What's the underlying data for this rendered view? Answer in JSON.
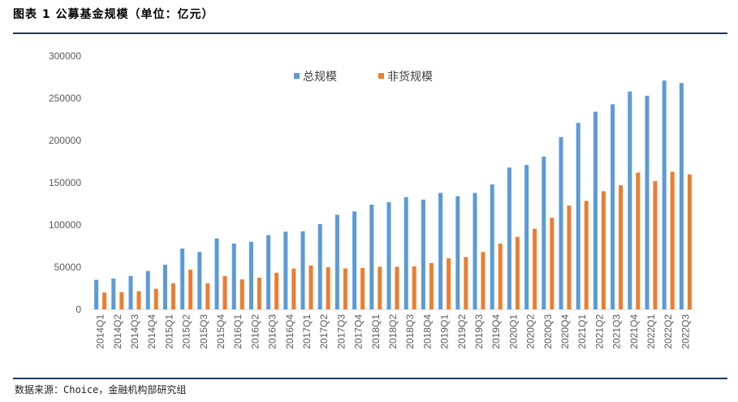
{
  "header": {
    "title": "图表 1 公募基金规模（单位：亿元）"
  },
  "footer": {
    "source": "数据来源：Choice，金融机构部研究组"
  },
  "colors": {
    "series_total": "#5B9BD5",
    "series_non_monetary": "#ED7D31",
    "rule": "#1f3a5a"
  },
  "chart_data": {
    "type": "bar",
    "title": "公募基金规模（单位：亿元）",
    "xlabel": "",
    "ylabel": "",
    "ylim": [
      0,
      300000
    ],
    "yticks": [
      0,
      50000,
      100000,
      150000,
      200000,
      250000,
      300000
    ],
    "ytick_labels": [
      "0",
      "50000",
      "100000",
      "150000",
      "200000",
      "250000",
      "300000"
    ],
    "grid": false,
    "legend_position": "top-center",
    "categories": [
      "2014Q1",
      "2014Q2",
      "2014Q3",
      "2014Q4",
      "2015Q1",
      "2015Q2",
      "2015Q3",
      "2015Q4",
      "2016Q1",
      "2016Q2",
      "2016Q3",
      "2016Q4",
      "2017Q1",
      "2017Q2",
      "2017Q3",
      "2017Q4",
      "2018Q1",
      "2018Q2",
      "2018Q3",
      "2018Q4",
      "2019Q1",
      "2019Q2",
      "2019Q3",
      "2019Q4",
      "2020Q1",
      "2020Q2",
      "2020Q3",
      "2020Q4",
      "2021Q1",
      "2021Q2",
      "2021Q3",
      "2021Q4",
      "2022Q1",
      "2022Q2",
      "2022Q3"
    ],
    "series": [
      {
        "name": "总规模",
        "values": [
          35000,
          36500,
          39500,
          45500,
          53000,
          72000,
          68000,
          84000,
          78000,
          80000,
          88000,
          92000,
          92500,
          101000,
          112000,
          116000,
          124000,
          127000,
          133000,
          130000,
          138000,
          134000,
          138000,
          148000,
          168000,
          171000,
          181000,
          204000,
          221000,
          234000,
          243000,
          258000,
          253000,
          271000,
          268000
        ]
      },
      {
        "name": "非货规模",
        "values": [
          20000,
          20500,
          21500,
          24500,
          31000,
          47000,
          31000,
          39500,
          35500,
          37500,
          43500,
          48500,
          52000,
          50000,
          48500,
          49000,
          50500,
          50500,
          51000,
          55000,
          60500,
          62000,
          68000,
          78000,
          86000,
          95500,
          108500,
          123000,
          128500,
          140000,
          147000,
          162000,
          152000,
          163000,
          160000
        ]
      }
    ]
  }
}
